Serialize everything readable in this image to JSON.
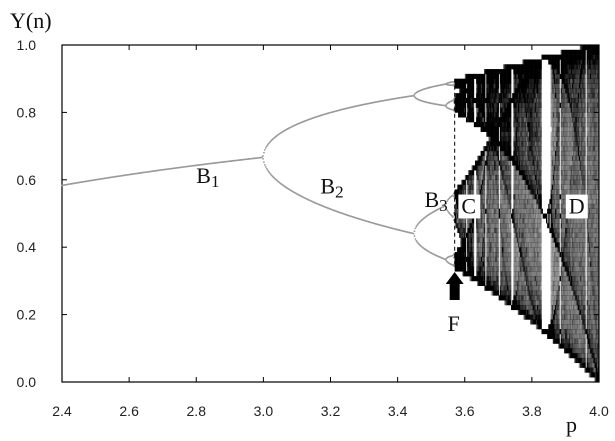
{
  "chart_data": {
    "type": "scatter",
    "title": "",
    "xlabel": "p",
    "ylabel": "Y(n)",
    "xlim": [
      2.4,
      4.0
    ],
    "ylim": [
      0.0,
      1.0
    ],
    "grid": false,
    "legend": "none",
    "x_ticks": [
      2.4,
      2.6,
      2.8,
      3.0,
      3.2,
      3.4,
      3.6,
      3.8,
      4.0
    ],
    "y_ticks": [
      0.0,
      0.2,
      0.4,
      0.6,
      0.8,
      1.0
    ],
    "x_tick_labels": [
      "2.4",
      "2.6",
      "2.8",
      "3.0",
      "3.2",
      "3.4",
      "3.6",
      "3.8",
      "4.0"
    ],
    "y_tick_labels": [
      "0.0",
      "0.2",
      "0.4",
      "0.6",
      "0.8",
      "1.0"
    ],
    "map": "logistic",
    "bifurcation_points": [
      3.0,
      3.449,
      3.544
    ],
    "onset_of_chaos": 3.57,
    "region_labels": [
      {
        "text": "B",
        "sub": "1",
        "x": 2.8,
        "y": 0.59
      },
      {
        "text": "B",
        "sub": "2",
        "x": 3.17,
        "y": 0.56
      },
      {
        "text": "B",
        "sub": "3",
        "x": 3.48,
        "y": 0.52
      },
      {
        "text": "C",
        "sub": "",
        "x": 3.59,
        "y": 0.5
      },
      {
        "text": "D",
        "sub": "",
        "x": 3.91,
        "y": 0.5
      }
    ],
    "marker": {
      "label": "F",
      "x": 3.57,
      "dashed_line_top": 0.9,
      "dashed_line_bottom": 0.35
    }
  },
  "colors": {
    "ink": "#000000",
    "periodic_branch": "#9a9a9a",
    "background": "#ffffff"
  }
}
